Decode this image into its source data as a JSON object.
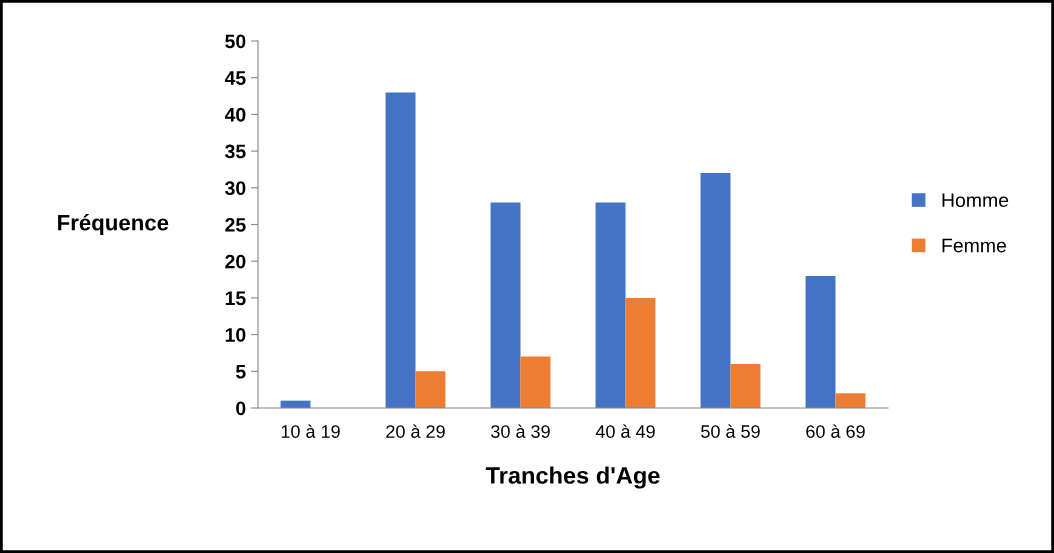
{
  "chart_data": {
    "type": "bar",
    "xlabel": "Tranches d'Age",
    "ylabel": "Fréquence",
    "categories": [
      "10 à 19",
      "20 à 29",
      "30 à 39",
      "40 à 49",
      "50 à 59",
      "60 à 69"
    ],
    "series": [
      {
        "name": "Homme",
        "color": "#4472c4",
        "values": [
          1,
          43,
          28,
          28,
          32,
          18
        ]
      },
      {
        "name": "Femme",
        "color": "#ed7d31",
        "values": [
          0,
          5,
          7,
          15,
          6,
          2
        ]
      }
    ],
    "ylim": [
      0,
      50
    ],
    "yticks": [
      0,
      5,
      10,
      15,
      20,
      25,
      30,
      35,
      40,
      45,
      50
    ],
    "grid": false,
    "legend": "right"
  }
}
